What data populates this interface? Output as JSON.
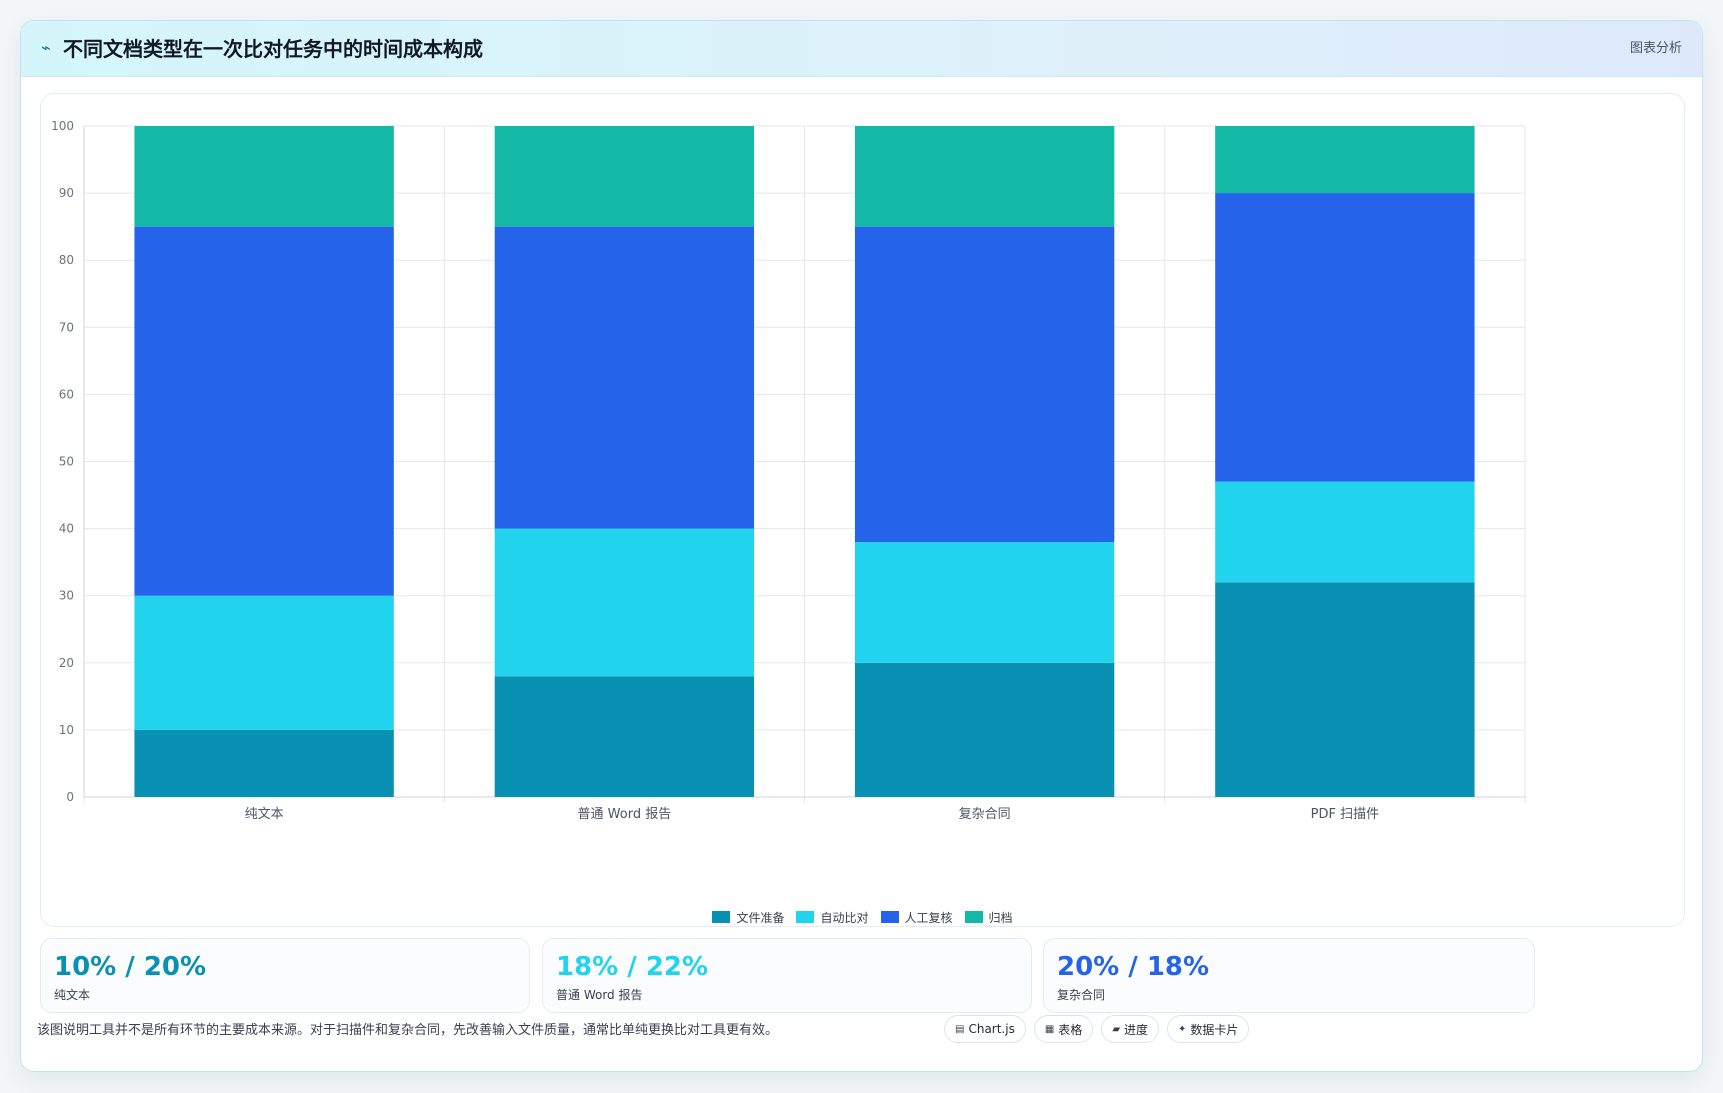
{
  "header": {
    "title": "不同文档类型在一次比对任务中的时间成本构成",
    "tag": "图表分析",
    "icon": "trend-line-icon"
  },
  "chart_data": {
    "type": "bar",
    "stacked": true,
    "categories": [
      "纯文本",
      "普通 Word 报告",
      "复杂合同",
      "PDF 扫描件"
    ],
    "series": [
      {
        "name": "文件准备",
        "color": "#0891b2",
        "values": [
          10,
          18,
          20,
          32
        ]
      },
      {
        "name": "自动比对",
        "color": "#22d3ee",
        "values": [
          20,
          22,
          18,
          15
        ]
      },
      {
        "name": "人工复核",
        "color": "#2563eb",
        "values": [
          55,
          45,
          47,
          43
        ]
      },
      {
        "name": "归档",
        "color": "#14b8a6",
        "values": [
          15,
          15,
          15,
          10
        ]
      }
    ],
    "ylim": [
      0,
      100
    ],
    "yticks": [
      0,
      10,
      20,
      30,
      40,
      50,
      60,
      70,
      80,
      90,
      100
    ],
    "grid": true,
    "legend": "bottom"
  },
  "stats": [
    {
      "value": "10% / 20%",
      "label": "纯文本",
      "color": "#0891b2"
    },
    {
      "value": "18% / 22%",
      "label": "普通 Word 报告",
      "color": "#22d3ee"
    },
    {
      "value": "20% / 18%",
      "label": "复杂合同",
      "color": "#2563eb"
    }
  ],
  "note": "该图说明工具并不是所有环节的主要成本来源。对于扫描件和复杂合同，先改善输入文件质量，通常比单纯更换比对工具更有效。",
  "chips": [
    {
      "label": "Chart.js",
      "icon": "chart-icon"
    },
    {
      "label": "表格",
      "icon": "table-icon"
    },
    {
      "label": "进度",
      "icon": "progress-icon"
    },
    {
      "label": "数据卡片",
      "icon": "sparkle-icon"
    }
  ]
}
